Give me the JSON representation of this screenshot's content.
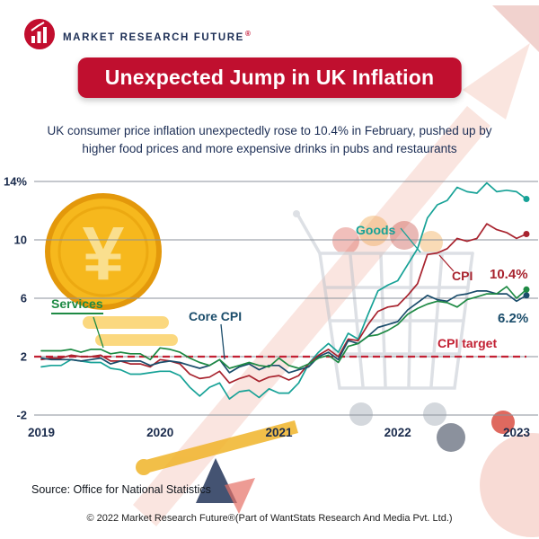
{
  "header": {
    "brand": "MARKET RESEARCH FUTURE",
    "registered": "®",
    "title": "Unexpected Jump in UK Inflation",
    "subtitle": "UK consumer price inflation unexpectedly rose to 10.4% in February, pushed up by higher food prices and more expensive drinks in pubs and restaurants"
  },
  "chart_data": {
    "type": "line",
    "title": "Unexpected Jump in UK Inflation",
    "x_unit": "month",
    "x_range": [
      "2019-01",
      "2023-02"
    ],
    "ylim": [
      -2,
      14
    ],
    "grid": true,
    "y_ticks": [
      {
        "label": "14%",
        "value": 14
      },
      {
        "label": "10",
        "value": 10
      },
      {
        "label": "6",
        "value": 6
      },
      {
        "label": "2",
        "value": 2
      },
      {
        "label": "-2",
        "value": -2
      }
    ],
    "x_ticks": [
      {
        "label": "2019",
        "index": 0
      },
      {
        "label": "2020",
        "index": 12
      },
      {
        "label": "2021",
        "index": 24
      },
      {
        "label": "2022",
        "index": 36
      },
      {
        "label": "2023",
        "index": 48
      }
    ],
    "target": {
      "label": "CPI target",
      "value": 2,
      "color": "#c22033"
    },
    "series": [
      {
        "name": "Goods",
        "color": "#17a297",
        "values": [
          1.3,
          1.4,
          1.4,
          1.8,
          1.7,
          1.6,
          1.6,
          1.2,
          1.1,
          0.8,
          0.8,
          0.9,
          1.0,
          1.0,
          0.7,
          -0.1,
          -0.7,
          -0.1,
          0.2,
          -0.9,
          -0.4,
          -0.3,
          -0.8,
          -0.2,
          -0.5,
          -0.5,
          0.2,
          1.5,
          2.3,
          2.9,
          2.3,
          3.6,
          3.2,
          4.9,
          6.5,
          6.9,
          7.2,
          8.3,
          9.4,
          11.5,
          12.4,
          12.7,
          13.6,
          13.3,
          13.2,
          13.9,
          13.3,
          13.4,
          13.3,
          12.8
        ]
      },
      {
        "name": "CPI",
        "color": "#a8232e",
        "values": [
          1.8,
          1.9,
          1.9,
          2.1,
          2.0,
          2.0,
          2.1,
          1.7,
          1.7,
          1.5,
          1.5,
          1.3,
          1.8,
          1.7,
          1.5,
          0.8,
          0.5,
          0.6,
          1.0,
          0.2,
          0.5,
          0.7,
          0.3,
          0.6,
          0.7,
          0.4,
          0.7,
          1.5,
          2.1,
          2.5,
          2.0,
          3.2,
          3.1,
          4.2,
          5.1,
          5.4,
          5.5,
          6.2,
          7.0,
          9.0,
          9.1,
          9.4,
          10.1,
          9.9,
          10.1,
          11.1,
          10.7,
          10.5,
          10.1,
          10.4
        ]
      },
      {
        "name": "Core CPI",
        "color": "#1b4d6b",
        "values": [
          1.9,
          1.8,
          1.8,
          1.8,
          1.7,
          1.8,
          1.9,
          1.5,
          1.7,
          1.7,
          1.7,
          1.4,
          1.6,
          1.7,
          1.6,
          1.4,
          1.2,
          1.4,
          1.8,
          0.9,
          1.3,
          1.5,
          1.1,
          1.4,
          1.4,
          0.9,
          1.1,
          1.3,
          2.0,
          2.3,
          1.8,
          3.1,
          2.9,
          3.4,
          4.0,
          4.2,
          4.4,
          5.2,
          5.7,
          6.2,
          5.9,
          5.8,
          6.2,
          6.3,
          6.5,
          6.5,
          6.3,
          6.3,
          5.8,
          6.2
        ]
      },
      {
        "name": "Services",
        "color": "#1e8a44",
        "values": [
          2.4,
          2.4,
          2.4,
          2.5,
          2.3,
          2.5,
          2.5,
          2.2,
          2.3,
          2.2,
          2.2,
          1.8,
          2.6,
          2.5,
          2.3,
          1.9,
          1.6,
          1.4,
          1.8,
          1.2,
          1.4,
          1.6,
          1.4,
          1.3,
          1.9,
          1.4,
          1.2,
          1.5,
          1.9,
          2.1,
          1.6,
          2.7,
          2.9,
          3.4,
          3.5,
          3.8,
          4.2,
          4.9,
          5.3,
          5.6,
          5.8,
          5.7,
          5.4,
          5.9,
          6.1,
          6.3,
          6.3,
          6.8,
          6.0,
          6.6
        ]
      }
    ],
    "annotations": {
      "goods": "Goods",
      "cpi": "CPI",
      "cpi_value": "10.4%",
      "services": "Services",
      "core_cpi": "Core CPI",
      "core_cpi_value": "6.2%",
      "target": "CPI target"
    }
  },
  "footer": {
    "source": "Source: Office for National Statistics",
    "copyright": "© 2022 Market Research Future®(Part of WantStats Research And Media Pvt. Ltd.)"
  }
}
